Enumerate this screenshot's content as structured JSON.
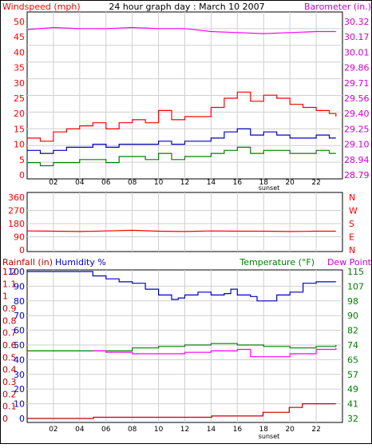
{
  "chart_data": [
    {
      "type": "line",
      "title": "24 hour graph day : March 10 2007",
      "y_left_label": "Windspeed (mph)",
      "y_right_label": "Barometer (in.)",
      "y_left_ticks": [
        "50",
        "45",
        "40",
        "35",
        "30",
        "25",
        "20",
        "15",
        "10",
        "5",
        "0"
      ],
      "y_right_ticks": [
        "30.32",
        "30.17",
        "30.01",
        "29.86",
        "29.71",
        "29.56",
        "29.40",
        "29.25",
        "29.10",
        "28.94",
        "28.79"
      ],
      "x_ticks": [
        "02",
        "04",
        "06",
        "08",
        "10",
        "12",
        "14",
        "16",
        "18",
        "20",
        "22"
      ],
      "x_annotation": "sunset",
      "xlim": [
        0,
        24
      ],
      "ylim": [
        0,
        50
      ],
      "grid": true,
      "series": [
        {
          "color": "#ff0000",
          "x": [
            0,
            1,
            2,
            3,
            4,
            5,
            6,
            7,
            8,
            9,
            10,
            11,
            12,
            13,
            14,
            15,
            16,
            17,
            18,
            19,
            20,
            21,
            22,
            23,
            23.5
          ],
          "values": [
            12,
            11,
            14,
            15,
            16,
            17,
            15,
            17,
            18,
            17,
            21,
            18,
            19,
            19,
            22,
            25,
            27,
            24,
            26,
            25,
            23,
            22,
            21,
            20,
            19
          ]
        },
        {
          "color": "#0000c0",
          "x": [
            0,
            1,
            2,
            3,
            4,
            5,
            6,
            7,
            8,
            9,
            10,
            11,
            12,
            13,
            14,
            15,
            16,
            17,
            18,
            19,
            20,
            21,
            22,
            23,
            23.5
          ],
          "values": [
            8,
            7,
            8,
            9,
            9,
            10,
            9,
            10,
            10,
            10,
            11,
            10,
            11,
            11,
            12,
            14,
            15,
            13,
            14,
            13,
            12,
            12,
            13,
            12,
            12
          ]
        },
        {
          "color": "#008000",
          "x": [
            0,
            1,
            2,
            3,
            4,
            5,
            6,
            7,
            8,
            9,
            10,
            11,
            12,
            13,
            14,
            15,
            16,
            17,
            18,
            19,
            20,
            21,
            22,
            23,
            23.5
          ],
          "values": [
            4,
            3,
            4,
            4,
            5,
            5,
            4,
            6,
            6,
            5,
            7,
            5,
            6,
            6,
            7,
            8,
            9,
            7,
            8,
            8,
            7,
            7,
            8,
            7,
            7
          ]
        },
        {
          "color": "#ff00ff",
          "axis": "right",
          "x": [
            0,
            2,
            4,
            6,
            8,
            10,
            12,
            14,
            16,
            18,
            20,
            22,
            23.5
          ],
          "values": [
            30.24,
            30.26,
            30.25,
            30.25,
            30.26,
            30.25,
            30.25,
            30.22,
            30.21,
            30.2,
            30.21,
            30.22,
            30.22
          ]
        }
      ]
    },
    {
      "type": "line",
      "y_left_ticks": [
        "360",
        "270",
        "180",
        "90",
        "0"
      ],
      "y_right_ticks": [
        "N",
        "W",
        "S",
        "E",
        "N"
      ],
      "xlim": [
        0,
        24
      ],
      "ylim": [
        0,
        360
      ],
      "grid": true,
      "series": [
        {
          "color": "#ff0000",
          "x": [
            0,
            2,
            4,
            6,
            8,
            10,
            12,
            14,
            16,
            18,
            20,
            22,
            23.5
          ],
          "values": [
            130,
            128,
            126,
            130,
            134,
            128,
            126,
            130,
            128,
            128,
            126,
            128,
            128
          ]
        }
      ]
    },
    {
      "type": "line",
      "y_left_label_1": "Rainfall (in)",
      "y_left_label_2": "Humidity %",
      "y_right_label_1": "Temperature (°F)",
      "y_right_label_2": "Dew Point",
      "y_rain_ticks": [
        "1.2",
        "1.1",
        "1",
        "0.9",
        "0.8",
        "0.7",
        "0.6",
        "0.5",
        "0.4",
        "0.3",
        "0.2",
        "0.1",
        "0"
      ],
      "y_hum_ticks": [
        "100",
        "90",
        "80",
        "70",
        "60",
        "50",
        "40",
        "30",
        "20",
        "10",
        "0"
      ],
      "y_right_ticks": [
        "115",
        "107",
        "98",
        "90",
        "82",
        "74",
        "65",
        "57",
        "49",
        "41",
        "32"
      ],
      "x_ticks": [
        "02",
        "04",
        "06",
        "08",
        "10",
        "12",
        "14",
        "16",
        "18",
        "20",
        "22"
      ],
      "x_annotation": "sunset",
      "xlim": [
        0,
        24
      ],
      "ylim": [
        0,
        100
      ],
      "grid": true,
      "series": [
        {
          "color": "#0000c0",
          "x": [
            0,
            4.9,
            5,
            6,
            7,
            8,
            9,
            10,
            11,
            11.5,
            12,
            13,
            14,
            15,
            15.5,
            16,
            17,
            17.5,
            18,
            19,
            20,
            21,
            22,
            23,
            23.5
          ],
          "values": [
            100,
            100,
            97,
            95,
            93,
            92,
            88,
            84,
            81,
            82,
            84,
            86,
            84,
            85,
            88,
            84,
            83,
            80,
            80,
            84,
            86,
            92,
            93,
            93,
            93
          ]
        },
        {
          "color": "#008000",
          "x": [
            0,
            5,
            6,
            8,
            10,
            12,
            14,
            16,
            18,
            20,
            22,
            23.5
          ],
          "values": [
            46,
            46,
            46,
            48,
            49,
            50,
            51,
            50,
            49,
            48,
            49,
            50
          ]
        },
        {
          "color": "#ff00ff",
          "x": [
            5,
            6,
            8,
            10,
            11,
            12,
            14,
            16,
            17,
            18,
            20,
            22,
            23.5
          ],
          "values": [
            46,
            45,
            44,
            44,
            44,
            45,
            46,
            47,
            42,
            42,
            44,
            47,
            48
          ]
        },
        {
          "color": "#c00000",
          "axis": "rain",
          "x": [
            0,
            5,
            5.05,
            14,
            14.05,
            17.9,
            17.95,
            19.9,
            19.95,
            20.9,
            20.95,
            23.5
          ],
          "values": [
            0.0,
            0.0,
            0.01,
            0.01,
            0.02,
            0.02,
            0.05,
            0.05,
            0.09,
            0.09,
            0.12,
            0.12
          ]
        }
      ]
    }
  ]
}
